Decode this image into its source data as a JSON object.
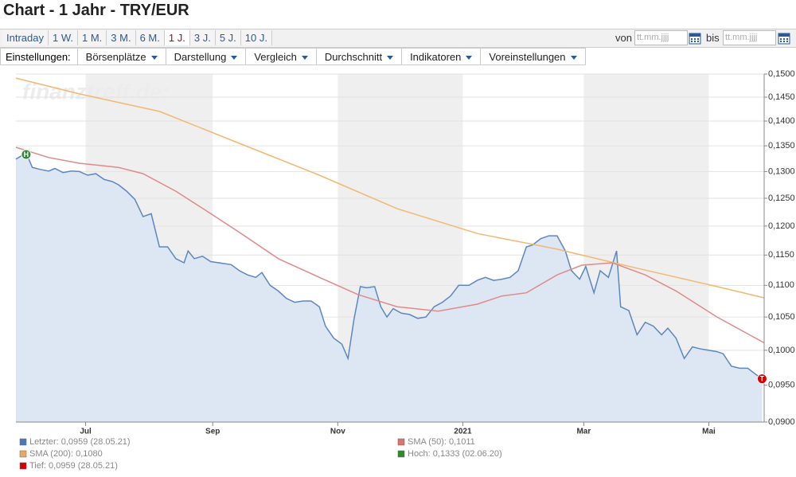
{
  "title": "Chart - 1 Jahr - TRY/EUR",
  "periods": [
    "Intraday",
    "1 W.",
    "1 M.",
    "3 M.",
    "6 M.",
    "1 J.",
    "3 J.",
    "5 J.",
    "10 J."
  ],
  "active_period": 5,
  "date_range": {
    "from_label": "von",
    "from_placeholder": "tt.mm.jjjj",
    "to_label": "bis",
    "to_placeholder": "tt.mm.jjjj"
  },
  "settings_label": "Einstellungen:",
  "menus": [
    "Börsenplätze",
    "Darstellung",
    "Vergleich",
    "Durchschnitt",
    "Indikatoren",
    "Voreinstellungen"
  ],
  "watermark": "finanztreff.de:",
  "chart_data": {
    "type": "line",
    "log_y": true,
    "grid": true,
    "xlim": [
      0,
      365
    ],
    "xticks": [
      {
        "value": 34,
        "label": "Jul"
      },
      {
        "value": 96,
        "label": "Sep"
      },
      {
        "value": 157,
        "label": "Nov"
      },
      {
        "value": 218,
        "label": "2021"
      },
      {
        "value": 277,
        "label": "Mar"
      },
      {
        "value": 338,
        "label": "Mai"
      }
    ],
    "ylim": [
      0.09,
      0.15
    ],
    "yticks": [
      {
        "value": 0.09,
        "label": "0,0900"
      },
      {
        "value": 0.095,
        "label": "0,0950"
      },
      {
        "value": 0.1,
        "label": "0,1000"
      },
      {
        "value": 0.105,
        "label": "0,1050"
      },
      {
        "value": 0.11,
        "label": "0,1100"
      },
      {
        "value": 0.115,
        "label": "0,1150"
      },
      {
        "value": 0.12,
        "label": "0,1200"
      },
      {
        "value": 0.125,
        "label": "0,1250"
      },
      {
        "value": 0.13,
        "label": "0,1300"
      },
      {
        "value": 0.135,
        "label": "0,1350"
      },
      {
        "value": 0.14,
        "label": "0,1400"
      },
      {
        "value": 0.145,
        "label": "0,1450"
      },
      {
        "value": 0.15,
        "label": "0,1500"
      }
    ],
    "series": [
      {
        "name": "Letzter: 0,0959 (28.05.21)",
        "color": "#5b87c0",
        "legend_color": "#4a79b8",
        "fill": "#dde7f3",
        "x": [
          0,
          5,
          8,
          12,
          16,
          19,
          23,
          27,
          31,
          35,
          39,
          43,
          47,
          50,
          54,
          58,
          62,
          66,
          70,
          74,
          78,
          82,
          84,
          87,
          91,
          95,
          99,
          105,
          109,
          113,
          117,
          120,
          124,
          128,
          132,
          136,
          140,
          144,
          148,
          151,
          155,
          159,
          162,
          165,
          168,
          171,
          175,
          178,
          181,
          184,
          188,
          192,
          196,
          200,
          204,
          208,
          212,
          216,
          221,
          225,
          229,
          233,
          237,
          241,
          245,
          249,
          252,
          256,
          260,
          264,
          268,
          271,
          275,
          278,
          282,
          285,
          289,
          293,
          295,
          299,
          303,
          307,
          311,
          315,
          318,
          322,
          326,
          330,
          334,
          338,
          342,
          345,
          349,
          353,
          357,
          361,
          364
        ],
        "values": [
          0.1324,
          0.1336,
          0.1308,
          0.1304,
          0.1301,
          0.1306,
          0.1298,
          0.1301,
          0.13,
          0.1293,
          0.1296,
          0.1285,
          0.1281,
          0.1275,
          0.1263,
          0.1248,
          0.1217,
          0.1222,
          0.1164,
          0.1164,
          0.1144,
          0.1137,
          0.1157,
          0.1144,
          0.1148,
          0.1139,
          0.1137,
          0.1134,
          0.1124,
          0.1117,
          0.1113,
          0.1121,
          0.11,
          0.1091,
          0.1079,
          0.1073,
          0.1075,
          0.1075,
          0.1066,
          0.1036,
          0.1018,
          0.1009,
          0.0988,
          0.1048,
          0.1098,
          0.1096,
          0.1098,
          0.1066,
          0.105,
          0.1063,
          0.1056,
          0.1054,
          0.1048,
          0.105,
          0.1066,
          0.1073,
          0.1083,
          0.11,
          0.11,
          0.1108,
          0.1113,
          0.1108,
          0.111,
          0.1113,
          0.1124,
          0.1164,
          0.1167,
          0.1178,
          0.1183,
          0.1183,
          0.1157,
          0.1124,
          0.111,
          0.1131,
          0.1088,
          0.1124,
          0.1113,
          0.1157,
          0.1066,
          0.106,
          0.1023,
          0.1042,
          0.1036,
          0.1023,
          0.1033,
          0.1018,
          0.0988,
          0.1005,
          0.1002,
          0.1,
          0.0998,
          0.0995,
          0.0977,
          0.0974,
          0.0974,
          0.0965,
          0.0959
        ]
      },
      {
        "name": "SMA (50): 0,1011",
        "color": "#e08a88",
        "legend_color": "#d9776f",
        "x": [
          0,
          16,
          31,
          50,
          62,
          78,
          93,
          109,
          128,
          148,
          167,
          186,
          206,
          225,
          237,
          249,
          264,
          276,
          291,
          307,
          322,
          342,
          365
        ],
        "values": [
          0.1347,
          0.1327,
          0.1316,
          0.1308,
          0.1296,
          0.1263,
          0.1227,
          0.1189,
          0.1144,
          0.1113,
          0.1085,
          0.1066,
          0.1059,
          0.107,
          0.1083,
          0.1088,
          0.1117,
          0.1133,
          0.1137,
          0.1117,
          0.1091,
          0.105,
          0.1011
        ]
      },
      {
        "name": "SMA (200): 0,1080",
        "color": "#f0b870",
        "legend_color": "#e8a860",
        "x": [
          0,
          31,
          70,
          109,
          148,
          186,
          225,
          264,
          303,
          342,
          365
        ],
        "values": [
          0.1491,
          0.1457,
          0.142,
          0.1355,
          0.1293,
          0.1231,
          0.1187,
          0.116,
          0.1128,
          0.1098,
          0.108
        ]
      }
    ],
    "markers": [
      {
        "label": "H",
        "name": "Hoch: 0,1333 (02.06.20)",
        "color": "#2f8a2f",
        "x": 5,
        "value": 0.1333
      },
      {
        "label": "T",
        "name": "Tief: 0,0959 (28.05.21)",
        "color": "#d40000",
        "x": 364,
        "value": 0.0959
      }
    ]
  }
}
